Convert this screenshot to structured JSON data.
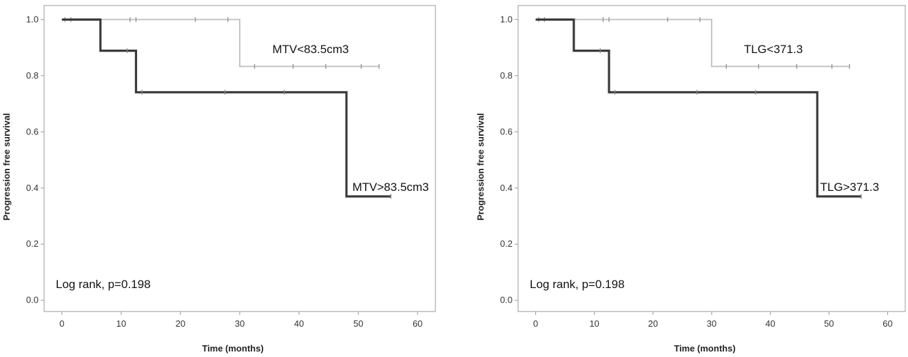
{
  "chart_data": [
    {
      "type": "line",
      "title": "",
      "xlabel": "Time (months)",
      "ylabel": "Progression free survival",
      "xlim": [
        -3,
        63
      ],
      "ylim": [
        -0.04,
        1.05
      ],
      "xticks": [
        "0",
        "10",
        "20",
        "30",
        "40",
        "50",
        "60"
      ],
      "yticks": [
        "0.0",
        "0.2",
        "0.4",
        "0.6",
        "0.8",
        "1.0"
      ],
      "grid": false,
      "annotation": "Log rank, p=0.198",
      "colors": {
        "low": "#bdbdbd",
        "high": "#3a3a3a"
      },
      "series": [
        {
          "name": "MTV<83.5cm3",
          "style": "low",
          "steps": [
            [
              0,
              1.0
            ],
            [
              30,
              1.0
            ],
            [
              30,
              0.833
            ],
            [
              53.5,
              0.833
            ]
          ],
          "censors": [
            [
              0.5,
              1.0
            ],
            [
              1.5,
              1.0
            ],
            [
              11.5,
              1.0
            ],
            [
              12.5,
              1.0
            ],
            [
              22.5,
              1.0
            ],
            [
              28,
              1.0
            ],
            [
              32.5,
              0.833
            ],
            [
              39,
              0.833
            ],
            [
              44.5,
              0.833
            ],
            [
              50.5,
              0.833
            ],
            [
              53.5,
              0.833
            ]
          ],
          "label_at": [
            35.5,
            0.88
          ]
        },
        {
          "name": "MTV>83.5cm3",
          "style": "high",
          "steps": [
            [
              0,
              1.0
            ],
            [
              6.5,
              1.0
            ],
            [
              6.5,
              0.889
            ],
            [
              12.5,
              0.889
            ],
            [
              12.5,
              0.741
            ],
            [
              48,
              0.741
            ],
            [
              48,
              0.37
            ],
            [
              55.5,
              0.37
            ]
          ],
          "censors": [
            [
              11,
              0.889
            ],
            [
              13.5,
              0.741
            ],
            [
              27.5,
              0.741
            ],
            [
              37.5,
              0.741
            ],
            [
              55.5,
              0.37
            ]
          ],
          "label_at": [
            49,
            0.39
          ]
        }
      ]
    },
    {
      "type": "line",
      "title": "",
      "xlabel": "Time (months)",
      "ylabel": "Progression free survival",
      "xlim": [
        -3,
        63
      ],
      "ylim": [
        -0.04,
        1.05
      ],
      "xticks": [
        "0",
        "10",
        "20",
        "30",
        "40",
        "50",
        "60"
      ],
      "yticks": [
        "0.0",
        "0.2",
        "0.4",
        "0.6",
        "0.8",
        "1.0"
      ],
      "grid": false,
      "annotation": "Log rank, p=0.198",
      "colors": {
        "low": "#bdbdbd",
        "high": "#3a3a3a"
      },
      "series": [
        {
          "name": "TLG<371.3",
          "style": "low",
          "steps": [
            [
              0,
              1.0
            ],
            [
              30,
              1.0
            ],
            [
              30,
              0.833
            ],
            [
              53.5,
              0.833
            ]
          ],
          "censors": [
            [
              0.5,
              1.0
            ],
            [
              1.5,
              1.0
            ],
            [
              11.5,
              1.0
            ],
            [
              12.5,
              1.0
            ],
            [
              22.5,
              1.0
            ],
            [
              28,
              1.0
            ],
            [
              32.5,
              0.833
            ],
            [
              38,
              0.833
            ],
            [
              44.5,
              0.833
            ],
            [
              50.5,
              0.833
            ],
            [
              53.5,
              0.833
            ]
          ],
          "label_at": [
            35.5,
            0.88
          ]
        },
        {
          "name": "TLG>371.3",
          "style": "high",
          "steps": [
            [
              0,
              1.0
            ],
            [
              6.5,
              1.0
            ],
            [
              6.5,
              0.889
            ],
            [
              12.5,
              0.889
            ],
            [
              12.5,
              0.741
            ],
            [
              48,
              0.741
            ],
            [
              48,
              0.37
            ],
            [
              55.5,
              0.37
            ]
          ],
          "censors": [
            [
              11,
              0.889
            ],
            [
              13.5,
              0.741
            ],
            [
              27.5,
              0.741
            ],
            [
              37.5,
              0.741
            ],
            [
              55.5,
              0.37
            ]
          ],
          "label_at": [
            48.5,
            0.39
          ]
        }
      ]
    }
  ]
}
